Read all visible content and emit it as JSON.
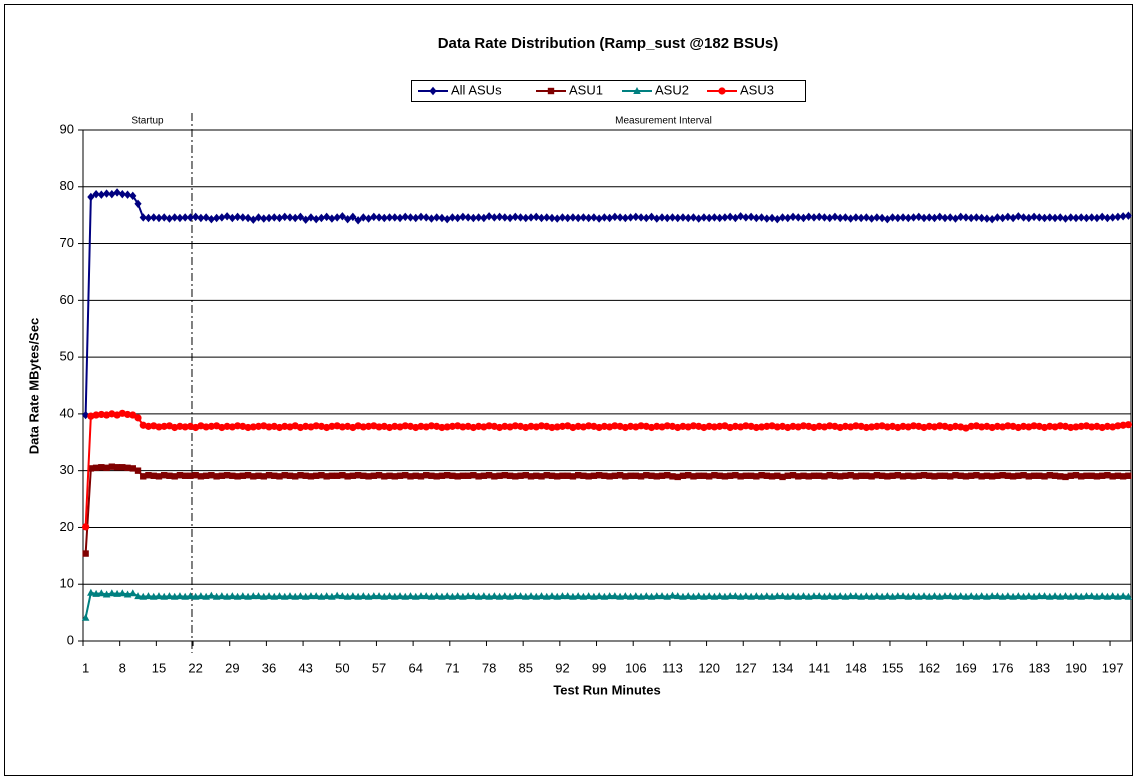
{
  "chart_data": {
    "type": "line",
    "title": "Data Rate Distribution (Ramp_sust @182 BSUs)",
    "x_label": "Test Run Minutes",
    "y_label": "Data Rate MBytes/Sec",
    "ylim": [
      0,
      90
    ],
    "yticks": [
      0,
      10,
      20,
      30,
      40,
      50,
      60,
      70,
      80,
      90
    ],
    "grid": true,
    "annotations": [
      {
        "text": "Startup"
      },
      {
        "text": "Measurement Interval"
      }
    ],
    "divider_x": 21.3,
    "categories": [
      "1",
      null,
      null,
      null,
      null,
      null,
      null,
      "8",
      null,
      null,
      null,
      null,
      null,
      null,
      "15",
      null,
      null,
      null,
      null,
      null,
      null,
      "22",
      null,
      null,
      null,
      null,
      null,
      null,
      "29",
      null,
      null,
      null,
      null,
      null,
      null,
      "36",
      null,
      null,
      null,
      null,
      null,
      null,
      "43",
      null,
      null,
      null,
      null,
      null,
      null,
      "50",
      null,
      null,
      null,
      null,
      null,
      null,
      "57",
      null,
      null,
      null,
      null,
      null,
      null,
      "64",
      null,
      null,
      null,
      null,
      null,
      null,
      "71",
      null,
      null,
      null,
      null,
      null,
      null,
      "78",
      null,
      null,
      null,
      null,
      null,
      null,
      "85",
      null,
      null,
      null,
      null,
      null,
      null,
      "92",
      null,
      null,
      null,
      null,
      null,
      null,
      "99",
      null,
      null,
      null,
      null,
      null,
      null,
      "106",
      null,
      null,
      null,
      null,
      null,
      null,
      "113",
      null,
      null,
      null,
      null,
      null,
      null,
      "120",
      null,
      null,
      null,
      null,
      null,
      null,
      "127",
      null,
      null,
      null,
      null,
      null,
      null,
      "134",
      null,
      null,
      null,
      null,
      null,
      null,
      "141",
      null,
      null,
      null,
      null,
      null,
      null,
      "148",
      null,
      null,
      null,
      null,
      null,
      null,
      "155",
      null,
      null,
      null,
      null,
      null,
      null,
      "162",
      null,
      null,
      null,
      null,
      null,
      null,
      "169",
      null,
      null,
      null,
      null,
      null,
      null,
      "176",
      null,
      null,
      null,
      null,
      null,
      null,
      "183",
      null,
      null,
      null,
      null,
      null,
      null,
      "190",
      null,
      null,
      null,
      null,
      null,
      null,
      "197",
      null,
      null,
      null
    ],
    "series": [
      {
        "name": "All ASUs",
        "color": "#000080",
        "marker": "diamond",
        "values": [
          39.8,
          78.2,
          78.7,
          78.6,
          78.8,
          78.7,
          79.0,
          78.7,
          78.6,
          78.4,
          77.0,
          74.6,
          74.5,
          74.6,
          74.5,
          74.6,
          74.4,
          74.6,
          74.5,
          74.6,
          74.6,
          74.7,
          74.5,
          74.6,
          74.3,
          74.5,
          74.6,
          74.8,
          74.5,
          74.7,
          74.6,
          74.5,
          74.2,
          74.6,
          74.4,
          74.5,
          74.6,
          74.5,
          74.7,
          74.6,
          74.5,
          74.7,
          74.2,
          74.6,
          74.3,
          74.5,
          74.7,
          74.4,
          74.6,
          74.8,
          74.3,
          74.7,
          74.1,
          74.6,
          74.4,
          74.7,
          74.6,
          74.5,
          74.6,
          74.6,
          74.5,
          74.7,
          74.6,
          74.5,
          74.7,
          74.6,
          74.4,
          74.6,
          74.5,
          74.3,
          74.6,
          74.5,
          74.7,
          74.6,
          74.5,
          74.6,
          74.5,
          74.8,
          74.6,
          74.7,
          74.6,
          74.5,
          74.7,
          74.6,
          74.5,
          74.6,
          74.7,
          74.5,
          74.6,
          74.5,
          74.4,
          74.6,
          74.5,
          74.6,
          74.5,
          74.6,
          74.5,
          74.6,
          74.4,
          74.6,
          74.5,
          74.7,
          74.6,
          74.5,
          74.6,
          74.7,
          74.6,
          74.5,
          74.7,
          74.4,
          74.6,
          74.5,
          74.6,
          74.5,
          74.6,
          74.5,
          74.6,
          74.4,
          74.6,
          74.5,
          74.6,
          74.5,
          74.6,
          74.7,
          74.5,
          74.8,
          74.6,
          74.7,
          74.5,
          74.6,
          74.4,
          74.5,
          74.3,
          74.6,
          74.5,
          74.7,
          74.6,
          74.5,
          74.7,
          74.6,
          74.7,
          74.6,
          74.5,
          74.7,
          74.5,
          74.6,
          74.4,
          74.6,
          74.5,
          74.6,
          74.4,
          74.6,
          74.5,
          74.3,
          74.6,
          74.5,
          74.6,
          74.5,
          74.6,
          74.7,
          74.5,
          74.6,
          74.5,
          74.7,
          74.5,
          74.6,
          74.4,
          74.7,
          74.6,
          74.5,
          74.6,
          74.5,
          74.4,
          74.3,
          74.6,
          74.5,
          74.7,
          74.5,
          74.8,
          74.6,
          74.5,
          74.7,
          74.6,
          74.5,
          74.6,
          74.5,
          74.6,
          74.4,
          74.6,
          74.5,
          74.6,
          74.5,
          74.6,
          74.5,
          74.7,
          74.5,
          74.6,
          74.7,
          74.8,
          74.9
        ]
      },
      {
        "name": "ASU1",
        "color": "#800000",
        "marker": "square",
        "values": [
          15.4,
          30.4,
          30.5,
          30.6,
          30.5,
          30.7,
          30.6,
          30.6,
          30.5,
          30.4,
          30.0,
          29.0,
          29.2,
          29.1,
          29.0,
          29.2,
          29.1,
          29.0,
          29.2,
          29.1,
          29.1,
          29.2,
          29.0,
          29.1,
          29.2,
          29.0,
          29.1,
          29.2,
          29.1,
          29.0,
          29.1,
          29.2,
          29.0,
          29.1,
          29.0,
          29.2,
          29.1,
          29.0,
          29.2,
          29.1,
          29.0,
          29.2,
          29.1,
          29.0,
          29.1,
          29.2,
          29.0,
          29.1,
          29.1,
          29.2,
          29.0,
          29.1,
          29.2,
          29.1,
          29.0,
          29.1,
          29.2,
          29.0,
          29.1,
          29.0,
          29.1,
          29.2,
          29.0,
          29.1,
          29.0,
          29.2,
          29.1,
          29.0,
          29.1,
          29.2,
          29.1,
          29.0,
          29.1,
          29.1,
          29.2,
          29.0,
          29.1,
          29.2,
          29.0,
          29.1,
          29.2,
          29.1,
          29.0,
          29.1,
          29.2,
          29.0,
          29.1,
          29.0,
          29.2,
          29.1,
          29.0,
          29.1,
          29.1,
          29.0,
          29.2,
          29.1,
          29.0,
          29.1,
          29.2,
          29.1,
          29.0,
          29.1,
          29.2,
          29.0,
          29.1,
          29.1,
          29.0,
          29.2,
          29.1,
          29.0,
          29.1,
          29.2,
          29.0,
          28.9,
          29.1,
          29.2,
          29.0,
          29.1,
          29.1,
          29.0,
          29.2,
          29.1,
          29.0,
          29.1,
          29.2,
          29.0,
          29.1,
          29.1,
          29.0,
          29.2,
          29.1,
          29.0,
          29.1,
          28.9,
          29.1,
          29.2,
          29.0,
          29.1,
          29.0,
          29.1,
          29.1,
          29.0,
          29.2,
          29.1,
          29.0,
          29.1,
          29.2,
          29.0,
          29.1,
          29.1,
          29.0,
          29.2,
          29.1,
          29.0,
          29.1,
          29.2,
          29.0,
          29.1,
          29.0,
          29.1,
          29.2,
          29.1,
          29.0,
          29.1,
          29.1,
          29.0,
          29.2,
          29.1,
          29.0,
          29.1,
          29.2,
          29.0,
          29.1,
          29.0,
          29.1,
          29.2,
          29.1,
          29.0,
          29.1,
          29.2,
          29.0,
          29.1,
          29.1,
          29.0,
          29.2,
          29.1,
          29.0,
          28.9,
          29.1,
          29.2,
          29.0,
          29.1,
          29.1,
          29.0,
          29.1,
          29.2,
          29.0,
          29.1,
          29.0,
          29.1
        ]
      },
      {
        "name": "ASU2",
        "color": "#008080",
        "marker": "triangle",
        "values": [
          4.1,
          8.5,
          8.3,
          8.4,
          8.2,
          8.4,
          8.3,
          8.4,
          8.2,
          8.4,
          7.9,
          7.8,
          7.9,
          7.8,
          7.9,
          7.8,
          7.9,
          7.8,
          7.9,
          7.8,
          7.9,
          7.8,
          7.9,
          7.8,
          8.0,
          7.8,
          7.9,
          7.8,
          7.9,
          7.8,
          7.9,
          7.8,
          7.9,
          7.9,
          7.8,
          7.9,
          7.8,
          7.9,
          7.8,
          7.9,
          7.8,
          7.9,
          7.8,
          7.9,
          7.9,
          7.8,
          7.9,
          7.8,
          8.0,
          7.9,
          7.8,
          7.9,
          7.8,
          7.9,
          7.8,
          7.9,
          7.9,
          7.8,
          7.9,
          7.8,
          7.9,
          7.8,
          7.9,
          7.8,
          7.9,
          7.9,
          7.8,
          7.9,
          7.8,
          7.9,
          7.8,
          7.9,
          7.8,
          7.9,
          7.9,
          7.8,
          7.9,
          7.8,
          7.9,
          7.8,
          7.9,
          7.8,
          7.9,
          7.9,
          7.8,
          7.9,
          7.8,
          7.9,
          7.8,
          7.9,
          7.8,
          7.9,
          7.9,
          7.8,
          7.9,
          7.8,
          7.9,
          7.8,
          7.9,
          7.8,
          7.9,
          7.9,
          7.8,
          7.9,
          7.8,
          7.9,
          7.8,
          7.9,
          7.8,
          7.9,
          7.9,
          7.8,
          8.0,
          7.9,
          7.8,
          7.9,
          7.8,
          7.9,
          7.8,
          7.9,
          7.8,
          7.9,
          7.8,
          7.9,
          7.9,
          7.8,
          7.9,
          7.8,
          7.9,
          7.8,
          7.9,
          7.8,
          7.9,
          7.9,
          7.8,
          7.9,
          7.8,
          7.9,
          7.8,
          7.9,
          7.9,
          7.8,
          7.9,
          7.8,
          7.9,
          7.8,
          7.9,
          7.9,
          7.8,
          7.9,
          7.8,
          7.9,
          7.8,
          7.9,
          7.8,
          7.9,
          7.9,
          7.8,
          7.9,
          7.8,
          7.9,
          7.8,
          7.9,
          7.8,
          7.9,
          7.9,
          7.8,
          7.9,
          7.8,
          7.9,
          7.8,
          7.9,
          7.8,
          7.9,
          7.9,
          7.8,
          7.9,
          7.8,
          7.9,
          7.8,
          7.9,
          7.8,
          7.9,
          7.9,
          7.8,
          7.9,
          7.8,
          7.9,
          7.8,
          7.9,
          7.8,
          7.9,
          7.9,
          7.8,
          7.9,
          7.8,
          7.9,
          7.8,
          7.9,
          7.8
        ]
      },
      {
        "name": "ASU3",
        "color": "#ff0000",
        "marker": "circle",
        "values": [
          20.1,
          39.6,
          39.8,
          39.9,
          39.8,
          40.0,
          39.8,
          40.1,
          39.9,
          39.8,
          39.3,
          38.0,
          37.8,
          37.9,
          37.7,
          37.8,
          37.9,
          37.6,
          37.8,
          37.7,
          37.8,
          37.6,
          37.9,
          37.7,
          37.8,
          37.9,
          37.6,
          37.8,
          37.7,
          37.9,
          37.8,
          37.6,
          37.7,
          37.8,
          37.9,
          37.7,
          37.8,
          37.6,
          37.8,
          37.7,
          37.9,
          37.6,
          37.8,
          37.7,
          37.9,
          37.8,
          37.6,
          37.8,
          37.9,
          37.7,
          37.8,
          37.6,
          37.9,
          37.7,
          37.8,
          37.9,
          37.7,
          37.8,
          37.6,
          37.8,
          37.7,
          37.9,
          37.8,
          37.6,
          37.8,
          37.7,
          37.9,
          37.8,
          37.6,
          37.7,
          37.8,
          37.9,
          37.7,
          37.8,
          37.6,
          37.8,
          37.7,
          37.9,
          37.8,
          37.6,
          37.8,
          37.7,
          37.9,
          37.8,
          37.6,
          37.8,
          37.7,
          37.9,
          37.8,
          37.6,
          37.7,
          37.8,
          37.9,
          37.6,
          37.8,
          37.7,
          37.9,
          37.8,
          37.6,
          37.8,
          37.7,
          37.9,
          37.8,
          37.6,
          37.8,
          37.7,
          37.9,
          37.8,
          37.6,
          37.8,
          37.7,
          37.9,
          37.8,
          37.6,
          37.8,
          37.7,
          37.9,
          37.8,
          37.6,
          37.8,
          37.7,
          37.8,
          37.9,
          37.6,
          37.8,
          37.7,
          37.9,
          37.8,
          37.6,
          37.7,
          37.8,
          37.9,
          37.7,
          37.8,
          37.6,
          37.8,
          37.7,
          37.9,
          37.8,
          37.6,
          37.8,
          37.7,
          37.9,
          37.8,
          37.6,
          37.8,
          37.7,
          37.9,
          37.8,
          37.6,
          37.7,
          37.8,
          37.9,
          37.7,
          37.8,
          37.6,
          37.8,
          37.7,
          37.9,
          37.8,
          37.6,
          37.8,
          37.7,
          37.9,
          37.8,
          37.6,
          37.8,
          37.7,
          37.5,
          37.8,
          37.9,
          37.7,
          37.8,
          37.6,
          37.8,
          37.7,
          37.9,
          37.8,
          37.6,
          37.8,
          37.7,
          37.9,
          37.8,
          37.6,
          37.8,
          37.7,
          37.9,
          37.8,
          37.6,
          37.7,
          37.8,
          37.9,
          37.7,
          37.8,
          37.6,
          37.8,
          37.7,
          37.9,
          38.0,
          38.1
        ]
      }
    ]
  }
}
